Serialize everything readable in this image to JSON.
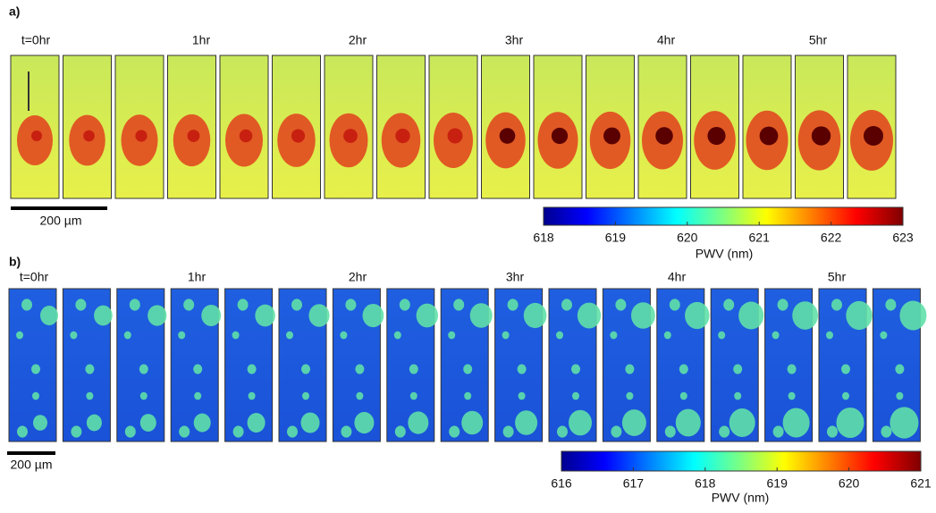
{
  "panels": [
    {
      "label": "a)",
      "time_labels": [
        "t=0hr",
        "1hr",
        "2hr",
        "3hr",
        "4hr",
        "5hr"
      ],
      "scale_bar": "200 µm",
      "colorbar": {
        "ticks": [
          618,
          619,
          620,
          621,
          622,
          623
        ],
        "label": "PWV (nm)"
      }
    },
    {
      "label": "b)",
      "time_labels": [
        "t=0hr",
        "1hr",
        "2hr",
        "3hr",
        "4hr",
        "5hr"
      ],
      "scale_bar": "200 µm",
      "colorbar": {
        "ticks": [
          616,
          617,
          618,
          619,
          620,
          621
        ],
        "label": "PWV (nm)"
      }
    }
  ]
}
